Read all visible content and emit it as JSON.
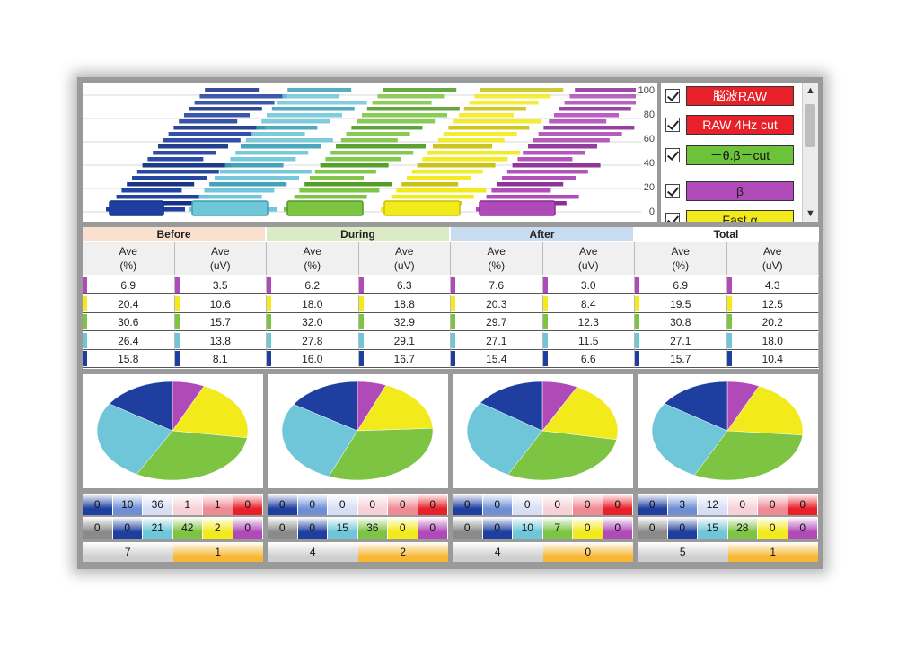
{
  "colors": {
    "navy": "#1e3fa0",
    "cyan": "#6ec6d8",
    "green": "#7cc442",
    "yellow": "#f2ea1a",
    "magenta": "#b04ab8",
    "red": "#e8202a",
    "orange": "#f7b731"
  },
  "top_chart": {
    "y_ticks": [
      "100",
      "80",
      "60",
      "40",
      "20",
      "0"
    ]
  },
  "legend": {
    "items": [
      {
        "label": "脳波RAW",
        "color": "#e8202a",
        "text_color": "#ffffff",
        "checked": true
      },
      {
        "label": "RAW 4Hz cut",
        "color": "#e8202a",
        "text_color": "#ffffff",
        "checked": true
      },
      {
        "label": "－θ.β－cut",
        "color": "#6cc23a",
        "text_color": "#111111",
        "checked": true
      },
      {
        "label": "β",
        "color": "#b04ab8",
        "text_color": "#222222",
        "checked": true
      },
      {
        "label": "Fast α",
        "color": "#f2ea1a",
        "text_color": "#222222",
        "checked": true
      }
    ],
    "scroll_up_icon": "chevron-up-icon",
    "scroll_down_icon": "chevron-down-icon"
  },
  "table": {
    "groups": [
      {
        "name": "Before",
        "color": "#f9e0cf"
      },
      {
        "name": "During",
        "color": "#dcebc7"
      },
      {
        "name": "After",
        "color": "#c9dcef"
      },
      {
        "name": "Total",
        "color": "#ffffff"
      }
    ],
    "col_top": "Ave",
    "col_units": [
      "(%)",
      "(uV)"
    ],
    "row_colors": [
      "#b04ab8",
      "#f2ea1a",
      "#7cc442",
      "#6ec6d8",
      "#1e3fa0"
    ],
    "rows": [
      [
        "6.9",
        "3.5",
        "6.2",
        "6.3",
        "7.6",
        "3.0",
        "6.9",
        "4.3"
      ],
      [
        "20.4",
        "10.6",
        "18.0",
        "18.8",
        "20.3",
        "8.4",
        "19.5",
        "12.5"
      ],
      [
        "30.6",
        "15.7",
        "32.0",
        "32.9",
        "29.7",
        "12.3",
        "30.8",
        "20.2"
      ],
      [
        "26.4",
        "13.8",
        "27.8",
        "29.1",
        "27.1",
        "11.5",
        "27.1",
        "18.0"
      ],
      [
        "15.8",
        "8.1",
        "16.0",
        "16.7",
        "15.4",
        "6.6",
        "15.7",
        "10.4"
      ]
    ]
  },
  "chart_data": [
    {
      "type": "pie",
      "categories": [
        "Magenta",
        "Yellow",
        "Green",
        "Cyan",
        "Navy"
      ],
      "values": [
        6.9,
        20.4,
        30.6,
        26.4,
        15.8
      ]
    },
    {
      "type": "pie",
      "categories": [
        "Magenta",
        "Yellow",
        "Green",
        "Cyan",
        "Navy"
      ],
      "values": [
        6.2,
        18.0,
        32.0,
        27.8,
        16.0
      ]
    },
    {
      "type": "pie",
      "categories": [
        "Magenta",
        "Yellow",
        "Green",
        "Cyan",
        "Navy"
      ],
      "values": [
        7.6,
        20.3,
        29.7,
        27.1,
        15.4
      ]
    },
    {
      "type": "pie",
      "categories": [
        "Magenta",
        "Yellow",
        "Green",
        "Cyan",
        "Navy"
      ],
      "values": [
        6.9,
        19.5,
        30.8,
        27.1,
        15.7
      ]
    }
  ],
  "counts": {
    "row1_colors": [
      "#1e3fa0",
      "#6e8fd6",
      "#d8dff5",
      "#f7d2d8",
      "#f08a95",
      "#e8202a"
    ],
    "row2_colors": [
      "#8a8a8a",
      "#1e3fa0",
      "#6ec6d8",
      "#7cc442",
      "#f2ea1a",
      "#b04ab8"
    ],
    "groups": [
      {
        "row1": [
          "0",
          "10",
          "36",
          "1",
          "1",
          "0"
        ],
        "row2": [
          "0",
          "0",
          "21",
          "42",
          "2",
          "0"
        ],
        "sum": [
          "7",
          "1"
        ]
      },
      {
        "row1": [
          "0",
          "0",
          "0",
          "0",
          "0",
          "0"
        ],
        "row2": [
          "0",
          "0",
          "15",
          "36",
          "0",
          "0"
        ],
        "sum": [
          "4",
          "2"
        ]
      },
      {
        "row1": [
          "0",
          "0",
          "0",
          "0",
          "0",
          "0"
        ],
        "row2": [
          "0",
          "0",
          "10",
          "7",
          "0",
          "0"
        ],
        "sum": [
          "4",
          "0"
        ]
      },
      {
        "row1": [
          "0",
          "3",
          "12",
          "0",
          "0",
          "0"
        ],
        "row2": [
          "0",
          "0",
          "15",
          "28",
          "0",
          "0"
        ],
        "sum": [
          "5",
          "1"
        ]
      }
    ],
    "sum_colors": [
      "#cfcfcf",
      "#f7b731"
    ]
  }
}
